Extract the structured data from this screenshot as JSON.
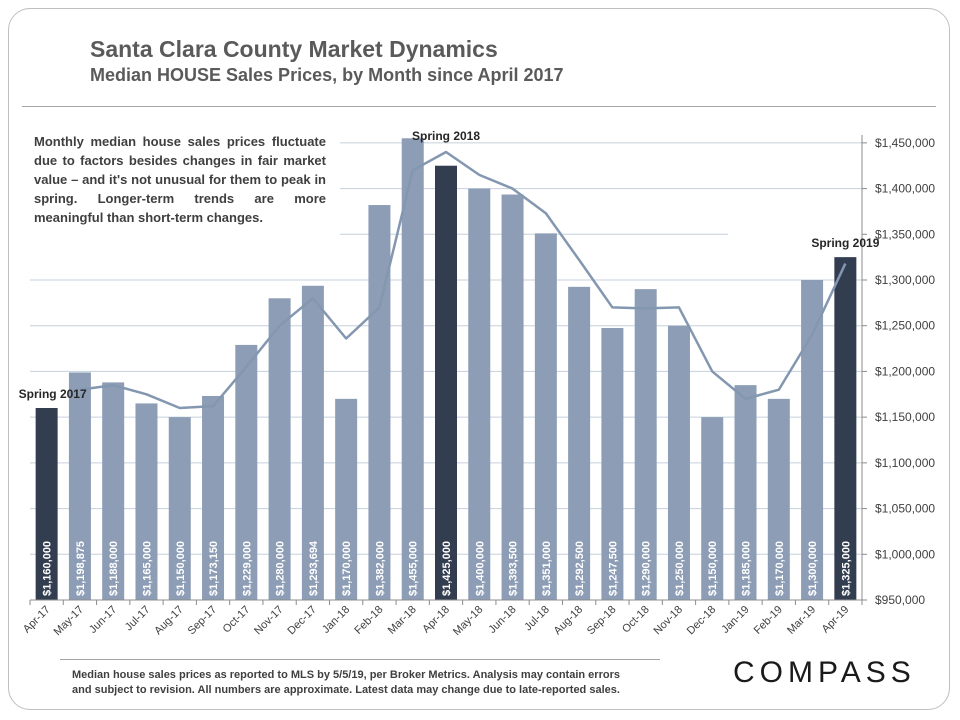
{
  "header": {
    "title": "Santa Clara County Market Dynamics",
    "subtitle": "Median HOUSE Sales Prices, by Month since April 2017"
  },
  "note": "Monthly median house sales prices fluctuate due to factors besides changes in fair market value – and it's not unusual for them to peak in spring. Longer-term trends are more meaningful than short-term changes.",
  "footer": {
    "line1": "Median house sales prices as reported to MLS by 5/5/19, per Broker Metrics.  Analysis may contain errors",
    "line2": "and subject to revision. All numbers are approximate. Latest data may change due to late-reported sales."
  },
  "logo": "COMPASS",
  "colors": {
    "bar": "#8c9db5",
    "bar_highlight": "#323d4f",
    "trend_line": "#8497b0",
    "grid": "#c5d0de",
    "axis_text": "#3f3f3f"
  },
  "chart_data": {
    "type": "bar",
    "categories": [
      "Apr-17",
      "May-17",
      "Jun-17",
      "Jul-17",
      "Aug-17",
      "Sep-17",
      "Oct-17",
      "Nov-17",
      "Dec-17",
      "Jan-18",
      "Feb-18",
      "Mar-18",
      "Apr-18",
      "May-18",
      "Jun-18",
      "Jul-18",
      "Aug-18",
      "Sep-18",
      "Oct-18",
      "Nov-18",
      "Dec-18",
      "Jan-19",
      "Feb-19",
      "Mar-19",
      "Apr-19"
    ],
    "values": [
      1160000,
      1198875,
      1188000,
      1165000,
      1150000,
      1173150,
      1229000,
      1280000,
      1293694,
      1170000,
      1382000,
      1455000,
      1425000,
      1400000,
      1393500,
      1351000,
      1292500,
      1247500,
      1290000,
      1250000,
      1150000,
      1185000,
      1170000,
      1300000,
      1325000
    ],
    "value_labels": [
      "$1,160,000",
      "$1,198,875",
      "$1,188,000",
      "$1,165,000",
      "$1,150,000",
      "$1,173,150",
      "$1,229,000",
      "$1,280,000",
      "$1,293,694",
      "$1,170,000",
      "$1,382,000",
      "$1,455,000",
      "$1,425,000",
      "$1,400,000",
      "$1,393,500",
      "$1,351,000",
      "$1,292,500",
      "$1,247,500",
      "$1,290,000",
      "$1,250,000",
      "$1,150,000",
      "$1,185,000",
      "$1,170,000",
      "$1,300,000",
      "$1,325,000"
    ],
    "highlight": [
      true,
      false,
      false,
      false,
      false,
      false,
      false,
      false,
      false,
      false,
      false,
      false,
      true,
      false,
      false,
      false,
      false,
      false,
      false,
      false,
      false,
      false,
      false,
      false,
      true
    ],
    "trend": [
      null,
      1180000,
      1185000,
      1175000,
      1160000,
      1162000,
      1205000,
      1250000,
      1280000,
      1236000,
      1270000,
      1420000,
      1440000,
      1415000,
      1400000,
      1373000,
      1322000,
      1270000,
      1269000,
      1270000,
      1200000,
      1170000,
      1180000,
      1240000,
      1318000
    ],
    "ylim": [
      950000,
      1475000
    ],
    "yticks": [
      950000,
      1000000,
      1050000,
      1100000,
      1150000,
      1200000,
      1250000,
      1300000,
      1350000,
      1400000,
      1450000
    ],
    "ytick_labels": [
      "$950,000",
      "$1,000,000",
      "$1,050,000",
      "$1,100,000",
      "$1,150,000",
      "$1,200,000",
      "$1,250,000",
      "$1,300,000",
      "$1,350,000",
      "$1,400,000",
      "$1,450,000"
    ],
    "annotations": [
      {
        "text": "Spring 2017",
        "index": 0
      },
      {
        "text": "Spring 2018",
        "index": 12
      },
      {
        "text": "Spring 2019",
        "index": 24
      }
    ],
    "grid": true,
    "y_axis_side": "right"
  }
}
